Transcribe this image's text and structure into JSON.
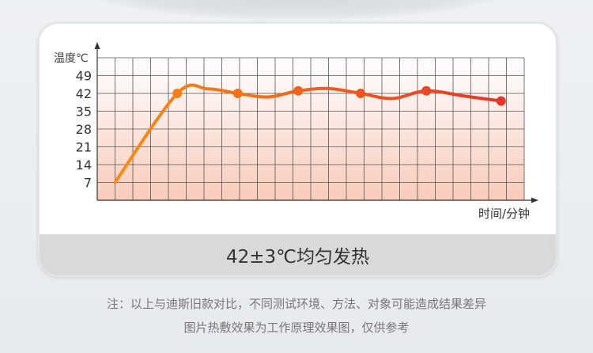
{
  "chart_data": {
    "type": "line",
    "ylabel": "温度℃",
    "xlabel": "时间/分钟",
    "yticks": [
      7,
      14,
      21,
      28,
      35,
      42,
      49
    ],
    "ylim": [
      0,
      56
    ],
    "xlim": [
      0,
      24
    ],
    "grid": true,
    "series": [
      {
        "points": [
          {
            "x": 1,
            "y": 7,
            "marker": false
          },
          {
            "x": 4.5,
            "y": 42,
            "marker": true
          },
          {
            "x": 6.2,
            "y": 43.8,
            "marker": false
          },
          {
            "x": 7.9,
            "y": 42,
            "marker": true
          },
          {
            "x": 9.6,
            "y": 40.6,
            "marker": false
          },
          {
            "x": 11.3,
            "y": 43,
            "marker": true
          },
          {
            "x": 13,
            "y": 43.9,
            "marker": false
          },
          {
            "x": 14.8,
            "y": 42,
            "marker": true
          },
          {
            "x": 16.6,
            "y": 40,
            "marker": false
          },
          {
            "x": 18.5,
            "y": 43,
            "marker": true
          },
          {
            "x": 20.6,
            "y": 41,
            "marker": false
          },
          {
            "x": 22.7,
            "y": 39,
            "marker": true
          }
        ]
      }
    ],
    "colors": {
      "line_start": "#ff8c12",
      "line_end": "#e8362a",
      "fill_top": "#ffffff",
      "fill_bottom": "#f8cbbb",
      "grid": "#555555"
    }
  },
  "banner": "42±3℃均匀发热",
  "notes": [
    "注：以上与迪斯旧款对比，不同测试环境、方法、对象可能造成结果差异",
    "图片热敷效果为工作原理效果图，仅供参考"
  ]
}
